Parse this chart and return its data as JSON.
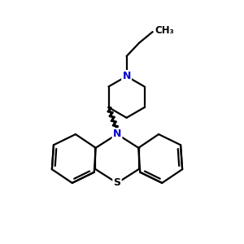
{
  "background_color": "#ffffff",
  "bond_color": "#000000",
  "N_color": "#0000cc",
  "S_color": "#000000",
  "line_width": 1.6,
  "figsize": [
    3.0,
    3.0
  ],
  "dpi": 100,
  "xlim": [
    0,
    10
  ],
  "ylim": [
    0,
    10
  ]
}
